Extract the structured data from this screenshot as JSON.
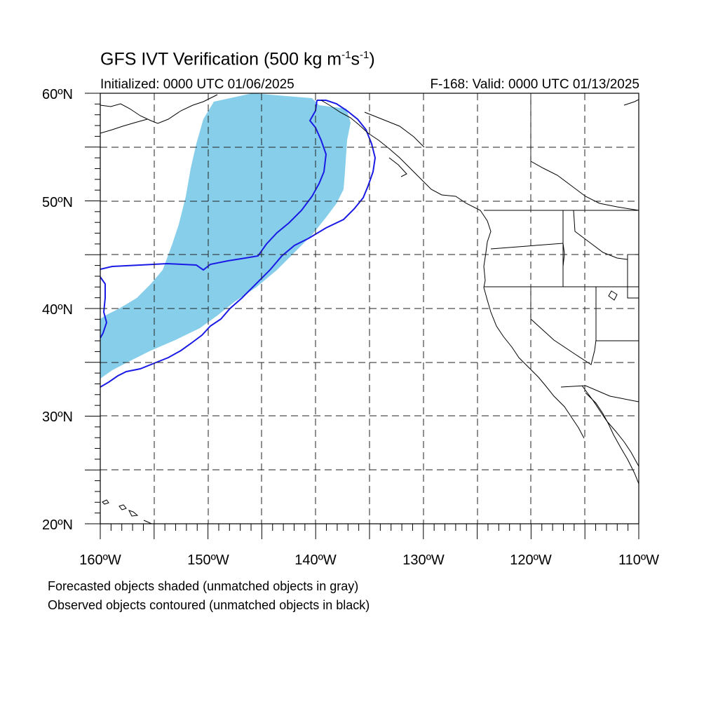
{
  "title": {
    "main": "GFS IVT Verification (500 kg m",
    "sup1": "-1",
    "mid": "s",
    "sup2": "-1",
    "end": ")"
  },
  "subtitle": {
    "initialized": "Initialized: 0000 UTC 01/06/2025",
    "valid": "F-168: Valid: 0000 UTC 01/13/2025"
  },
  "map": {
    "lon_range": [
      -160,
      -110
    ],
    "lat_range": [
      20,
      60
    ],
    "lat_ticks": [
      "20ºN",
      "30ºN",
      "40ºN",
      "50ºN",
      "60ºN"
    ],
    "lon_ticks": [
      "160ºW",
      "150ºW",
      "140ºW",
      "130ºW",
      "120ºW",
      "110ºW"
    ],
    "grid": "dashed, every 5 degrees",
    "forecast_color": "#87ceea",
    "observed_color": "#1a1ae6"
  },
  "captions": {
    "line1": "Forecasted objects shaded (unmatched objects in gray)",
    "line2": "Observed objects contoured (unmatched objects in black)"
  }
}
